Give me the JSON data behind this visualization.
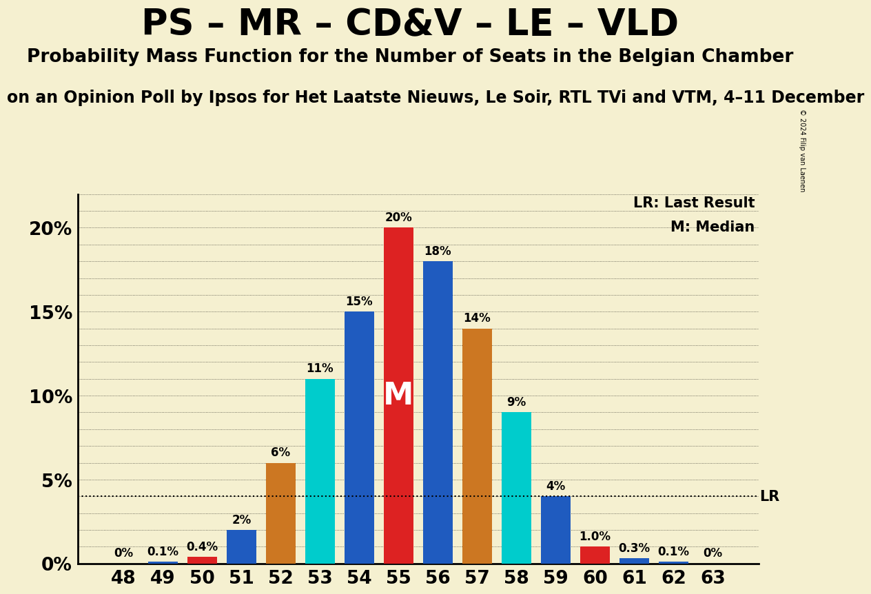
{
  "title1": "PS – MR – CD&V – LE – VLD",
  "title2": "Probability Mass Function for the Number of Seats in the Belgian Chamber",
  "title3": "on an Opinion Poll by Ipsos for Het Laatste Nieuws, Le Soir, RTL TVi and VTM, 4–11 December",
  "copyright": "© 2024 Filip van Laenen",
  "background_color": "#f5f0d0",
  "categories": [
    48,
    49,
    50,
    51,
    52,
    53,
    54,
    55,
    56,
    57,
    58,
    59,
    60,
    61,
    62,
    63
  ],
  "values": [
    0.0,
    0.1,
    0.4,
    2.0,
    6.0,
    11.0,
    15.0,
    20.0,
    18.0,
    14.0,
    9.0,
    4.0,
    1.0,
    0.3,
    0.1,
    0.0
  ],
  "bar_colors": [
    "#1f5bbf",
    "#1f5bbf",
    "#dd2222",
    "#1f5bbf",
    "#cc7722",
    "#00cccc",
    "#1f5bbf",
    "#dd2222",
    "#1f5bbf",
    "#cc7722",
    "#00cccc",
    "#1f5bbf",
    "#dd2222",
    "#1f5bbf",
    "#1f5bbf",
    "#1f5bbf"
  ],
  "labels": [
    "0%",
    "0.1%",
    "0.4%",
    "2%",
    "6%",
    "11%",
    "15%",
    "20%",
    "18%",
    "14%",
    "9%",
    "4%",
    "1.0%",
    "0.3%",
    "0.1%",
    "0%"
  ],
  "median_seat": 55,
  "lr_value": 4.0,
  "ylim": [
    0,
    22
  ],
  "yticks": [
    0,
    5,
    10,
    15,
    20
  ],
  "ytick_labels": [
    "0%",
    "5%",
    "10%",
    "15%",
    "20%"
  ],
  "legend_lr": "LR: Last Result",
  "legend_m": "M: Median",
  "title1_fontsize": 38,
  "title2_fontsize": 19,
  "title3_fontsize": 17,
  "label_fontsize": 12,
  "tick_fontsize": 19,
  "legend_fontsize": 15,
  "bar_width": 0.75
}
